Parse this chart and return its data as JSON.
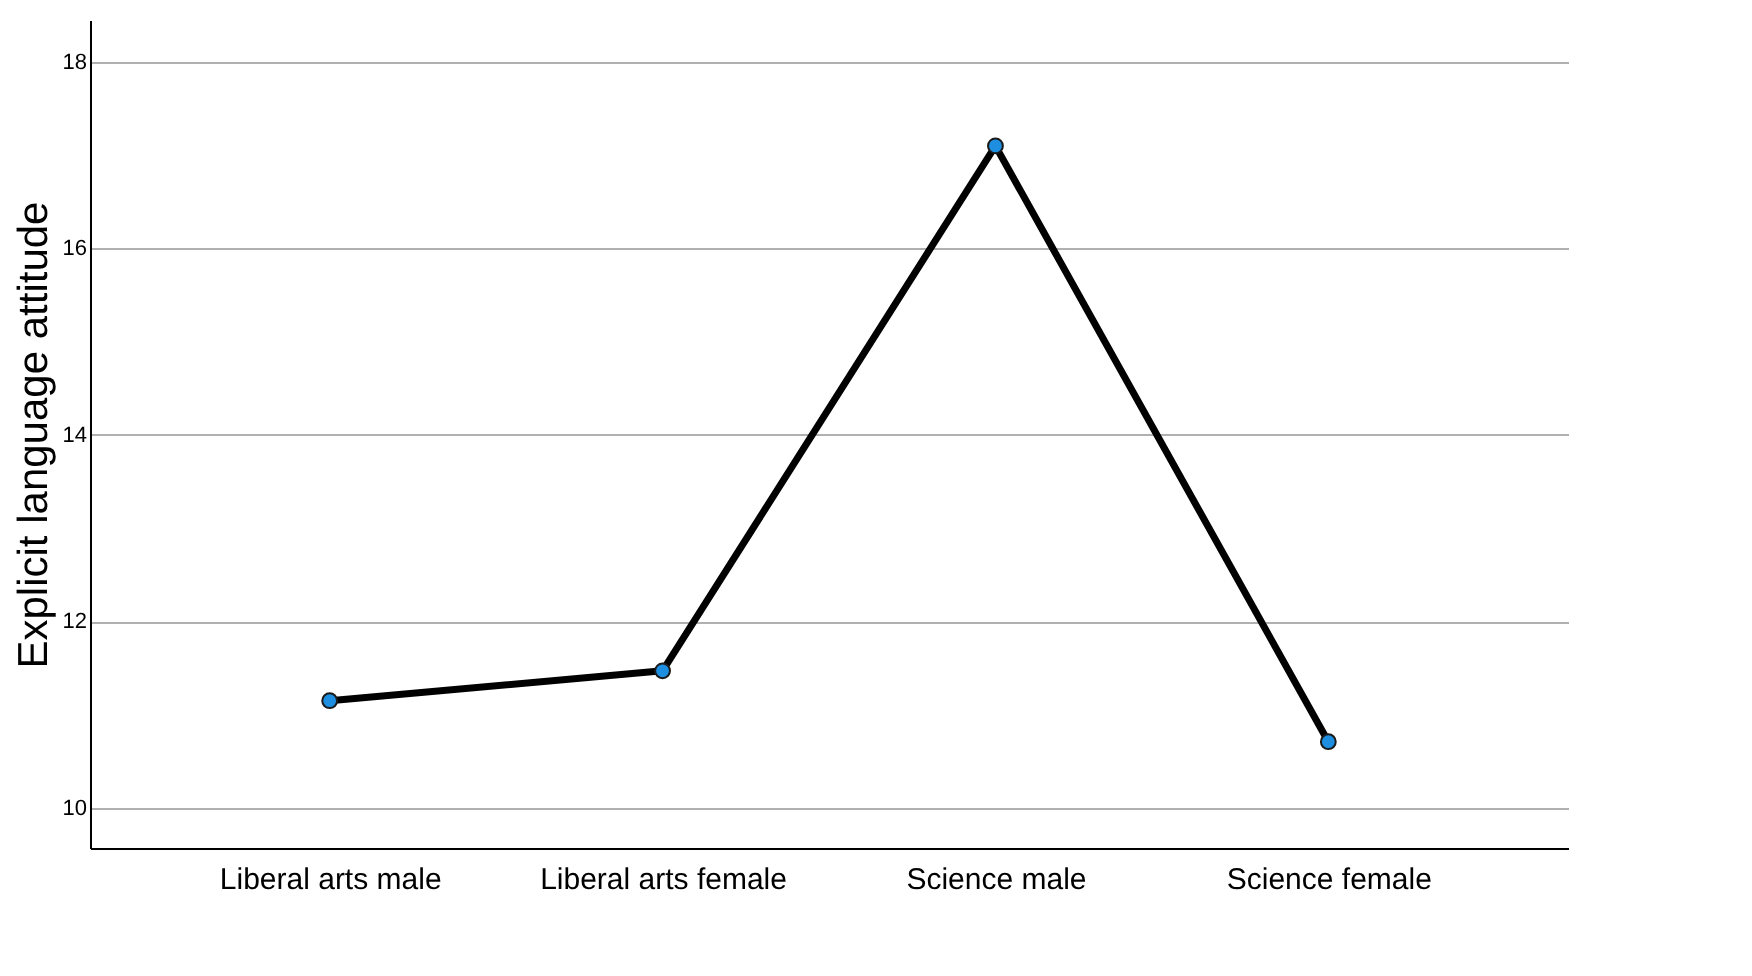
{
  "chart_data": {
    "type": "line",
    "ylabel": "Explicit language attitude",
    "categories": [
      "Liberal arts male",
      "Liberal arts female",
      "Science male",
      "Science female"
    ],
    "series": [
      {
        "color": "#000000",
        "values": [
          11.15,
          11.47,
          17.1,
          10.71
        ]
      }
    ],
    "ylim": [
      9.57,
      18.45
    ],
    "yticks": [
      10,
      12,
      14,
      16,
      18
    ],
    "grid": "y",
    "marker": "circle",
    "line_style": "solid"
  }
}
